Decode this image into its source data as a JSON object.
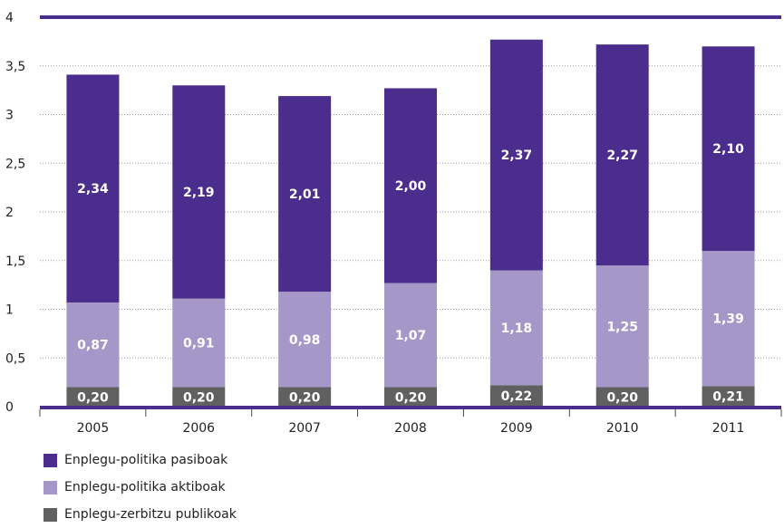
{
  "chart_data": {
    "type": "bar",
    "stacked": true,
    "categories": [
      "2005",
      "2006",
      "2007",
      "2008",
      "2009",
      "2010",
      "2011"
    ],
    "series": [
      {
        "name": "Enplegu-zerbitzu publikoak",
        "color": "#606060",
        "values": [
          0.2,
          0.2,
          0.2,
          0.2,
          0.22,
          0.2,
          0.21
        ],
        "labels": [
          "0,20",
          "0,20",
          "0,20",
          "0,20",
          "0,22",
          "0,20",
          "0,21"
        ]
      },
      {
        "name": "Enplegu-politika aktiboak",
        "color": "#a597c8",
        "values": [
          0.87,
          0.91,
          0.98,
          1.07,
          1.18,
          1.25,
          1.39
        ],
        "labels": [
          "0,87",
          "0,91",
          "0,98",
          "1,07",
          "1,18",
          "1,25",
          "1,39"
        ]
      },
      {
        "name": "Enplegu-politika pasiboak",
        "color": "#4a2d8c",
        "values": [
          2.34,
          2.19,
          2.01,
          2.0,
          2.37,
          2.27,
          2.1
        ],
        "labels": [
          "2,34",
          "2,19",
          "2,01",
          "2,00",
          "2,37",
          "2,27",
          "2,10"
        ]
      }
    ],
    "ylim": [
      0,
      4
    ],
    "yticks": [
      0,
      0.5,
      1,
      1.5,
      2,
      2.5,
      3,
      3.5,
      4
    ],
    "ytick_labels": [
      "0",
      "0,5",
      "1",
      "1,5",
      "2",
      "2,5",
      "3",
      "3,5",
      "4"
    ],
    "grid": true,
    "legend_position": "bottom-left",
    "accent_color": "#4a2d8c"
  }
}
